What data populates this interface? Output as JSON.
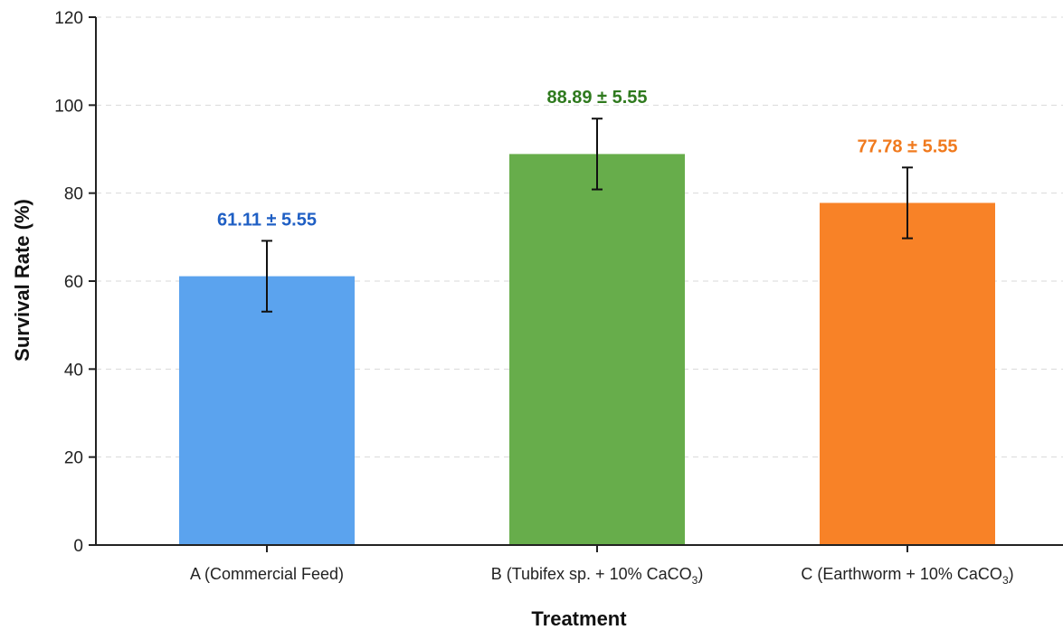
{
  "chart_data": {
    "type": "bar",
    "title": "",
    "xlabel": "Treatment",
    "ylabel": "Survival Rate (%)",
    "ylim": [
      0,
      120
    ],
    "yticks": [
      0,
      20,
      40,
      60,
      80,
      100,
      120
    ],
    "grid": true,
    "categories": [
      {
        "main": "A (Commercial Feed)",
        "sub": "",
        "tail": ""
      },
      {
        "main": "B (Tubifex sp. + 10% CaCO",
        "sub": "3",
        "tail": ")"
      },
      {
        "main": "C (Earthworm + 10% CaCO",
        "sub": "3",
        "tail": ")"
      }
    ],
    "values": [
      61.11,
      88.89,
      77.78
    ],
    "errors": [
      5.55,
      5.55,
      5.55
    ],
    "data_labels": [
      "61.11 ± 5.55",
      "88.89 ± 5.55",
      "77.78 ± 5.55"
    ],
    "colors": [
      "#5ba3ee",
      "#67ad4b",
      "#f88227"
    ],
    "label_colors": [
      "#1f5fc4",
      "#2f7a1e",
      "#f07a1e"
    ]
  }
}
